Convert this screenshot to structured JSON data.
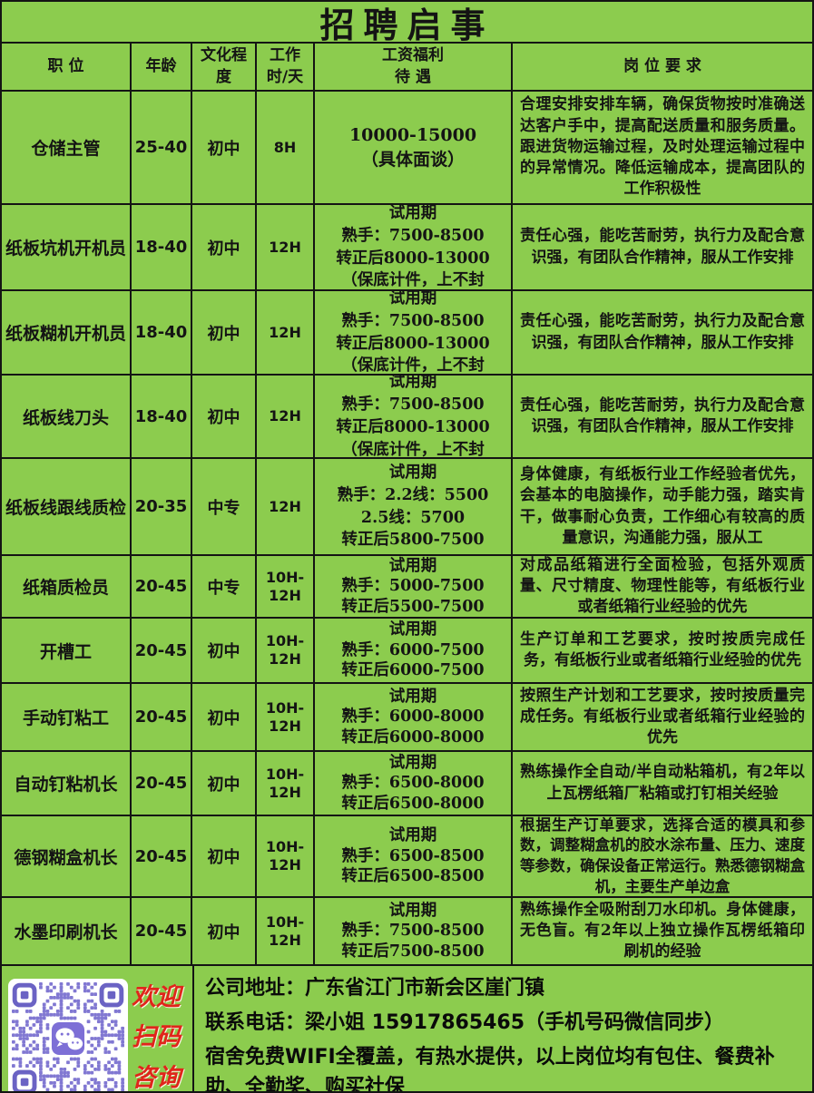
{
  "title": "招聘启事",
  "table": {
    "headers": {
      "position": "职  位",
      "age": "年龄",
      "education": "文化程\n度",
      "hours": "工作\n时/天",
      "salary": "工资福利\n待  遇",
      "requirements": "岗 位 要 求"
    },
    "rows": [
      {
        "position": "仓储主管",
        "age": "25-40",
        "education": "初中",
        "hours": "8H",
        "salary": "10000-15000\n（具体面谈）",
        "requirements": "合理安排安排车辆，确保货物按时准确送达客户手中，提高配送质量和服务质量。跟进货物运输过程，及时处理运输过程中的异常情况。降低运输成本，提高团队的工作积极性"
      },
      {
        "position": "纸板坑机开机员",
        "age": "18-40",
        "education": "初中",
        "hours": "12H",
        "salary": "试用期\n熟手：7500-8500\n转正后8000-13000\n（保底计件，上不封",
        "requirements": "责任心强，能吃苦耐劳，执行力及配合意识强，有团队合作精神，服从工作安排"
      },
      {
        "position": "纸板糊机开机员",
        "age": "18-40",
        "education": "初中",
        "hours": "12H",
        "salary": "试用期\n熟手：7500-8500\n转正后8000-13000\n（保底计件，上不封",
        "requirements": "责任心强，能吃苦耐劳，执行力及配合意识强，有团队合作精神，服从工作安排"
      },
      {
        "position": "纸板线刀头",
        "age": "18-40",
        "education": "初中",
        "hours": "12H",
        "salary": "试用期\n熟手：7500-8500\n转正后8000-13000\n（保底计件，上不封",
        "requirements": "责任心强，能吃苦耐劳，执行力及配合意识强，有团队合作精神，服从工作安排"
      },
      {
        "position": "纸板线跟线质检",
        "age": "20-35",
        "education": "中专",
        "hours": "12H",
        "salary": "试用期\n熟手：2.2线：5500\n2.5线：5700\n转正后5800-7500",
        "requirements": "身体健康，有纸板行业工作经验者优先，会基本的电脑操作，动手能力强，踏实肯干，做事耐心负责，工作细心有较高的质量意识，沟通能力强，服从工"
      },
      {
        "position": "纸箱质检员",
        "age": "20-45",
        "education": "中专",
        "hours": "10H-12H",
        "salary": "试用期\n熟手：5000-7500\n转正后5500-7500",
        "requirements": "对成品纸箱进行全面检验，包括外观质量、尺寸精度、物理性能等，有纸板行业或者纸箱行业经验的优先"
      },
      {
        "position": "开槽工",
        "age": "20-45",
        "education": "初中",
        "hours": "10H-12H",
        "salary": "试用期\n熟手：6000-7500\n转正后6000-7500",
        "requirements": "生产订单和工艺要求，按时按质完成任务，有纸板行业或者纸箱行业经验的优先"
      },
      {
        "position": "手动钉粘工",
        "age": "20-45",
        "education": "初中",
        "hours": "10H-12H",
        "salary": "试用期\n熟手：6000-8000\n转正后6000-8000",
        "requirements": "按照生产计划和工艺要求，按时按质量完成任务。有纸板行业或者纸箱行业经验的优先"
      },
      {
        "position": "自动钉粘机长",
        "age": "20-45",
        "education": "初中",
        "hours": "10H-12H",
        "salary": "试用期\n熟手：6500-8000\n转正后6500-8000",
        "requirements": "熟练操作全自动/半自动粘箱机，有2年以上瓦楞纸箱厂粘箱或打钉相关经验"
      },
      {
        "position": "德钢糊盒机长",
        "age": "20-45",
        "education": "初中",
        "hours": "10H-12H",
        "salary": "试用期\n熟手：6500-8500\n转正后6500-8500",
        "requirements": "根据生产订单要求，选择合适的模具和参数，调整糊盒机的胶水涂布量、压力、速度等参数，确保设备正常运行。熟悉德钢糊盒机，主要生产单边盒"
      },
      {
        "position": "水墨印刷机长",
        "age": "20-45",
        "education": "初中",
        "hours": "10H-12H",
        "salary": "试用期\n熟手：7500-8500\n转正后7500-8500",
        "requirements": "熟练操作全吸附刮刀水印机。身体健康，无色盲。有2年以上独立操作瓦楞纸箱印刷机的经验"
      }
    ]
  },
  "footer": {
    "qr_caption": "欢迎\n扫码\n咨询",
    "address": "公司地址：广东省江门市新会区崖门镇",
    "phone": "联系电话：梁小姐 15917865465（手机号码微信同步）",
    "benefits": "宿舍免费WIFI全覆盖，有热水提供，以上岗位均有包住、餐费补助、全勤奖、购买社保"
  },
  "colors": {
    "background": "#8ccc4e",
    "border": "#141414",
    "text": "#141414",
    "accent_red": "#e0251b",
    "qr_module": "#8178d2",
    "qr_finder": "#6b63c4",
    "wechat_icon_bg": "#7d6fd6"
  }
}
